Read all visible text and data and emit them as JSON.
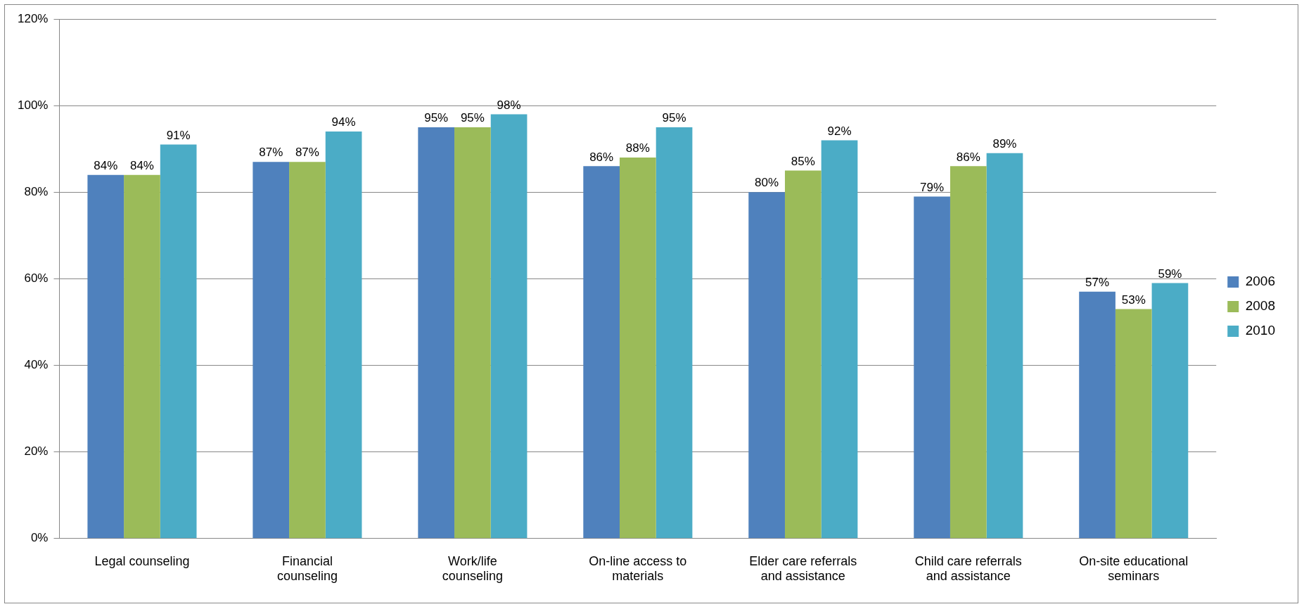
{
  "chart_data": {
    "type": "bar",
    "categories": [
      "Legal counseling",
      "Financial counseling",
      "Work/life counseling",
      "On-line access to materials",
      "Elder care referrals and assistance",
      "Child care referrals and assistance",
      "On-site educational seminars"
    ],
    "series": [
      {
        "name": "2006",
        "color": "#4f81bd",
        "values": [
          84,
          87,
          95,
          86,
          80,
          79,
          57
        ],
        "value_labels": [
          "84%",
          "87%",
          "95%",
          "86%",
          "80%",
          "79%",
          "57%"
        ]
      },
      {
        "name": "2008",
        "color": "#9bbb59",
        "values": [
          84,
          87,
          95,
          88,
          85,
          86,
          53
        ],
        "value_labels": [
          "84%",
          "87%",
          "95%",
          "88%",
          "85%",
          "86%",
          "53%"
        ]
      },
      {
        "name": "2010",
        "color": "#4bacc6",
        "values": [
          91,
          94,
          98,
          95,
          92,
          89,
          59
        ],
        "value_labels": [
          "91%",
          "94%",
          "98%",
          "95%",
          "92%",
          "89%",
          "59%"
        ]
      }
    ],
    "ylim": [
      0,
      120
    ],
    "yticks": [
      {
        "value": 0,
        "label": "0%"
      },
      {
        "value": 20,
        "label": "20%"
      },
      {
        "value": 40,
        "label": "40%"
      },
      {
        "value": 60,
        "label": "60%"
      },
      {
        "value": 80,
        "label": "80%"
      },
      {
        "value": 100,
        "label": "100%"
      },
      {
        "value": 120,
        "label": "120%"
      }
    ],
    "grid": "y",
    "legend": "right"
  }
}
